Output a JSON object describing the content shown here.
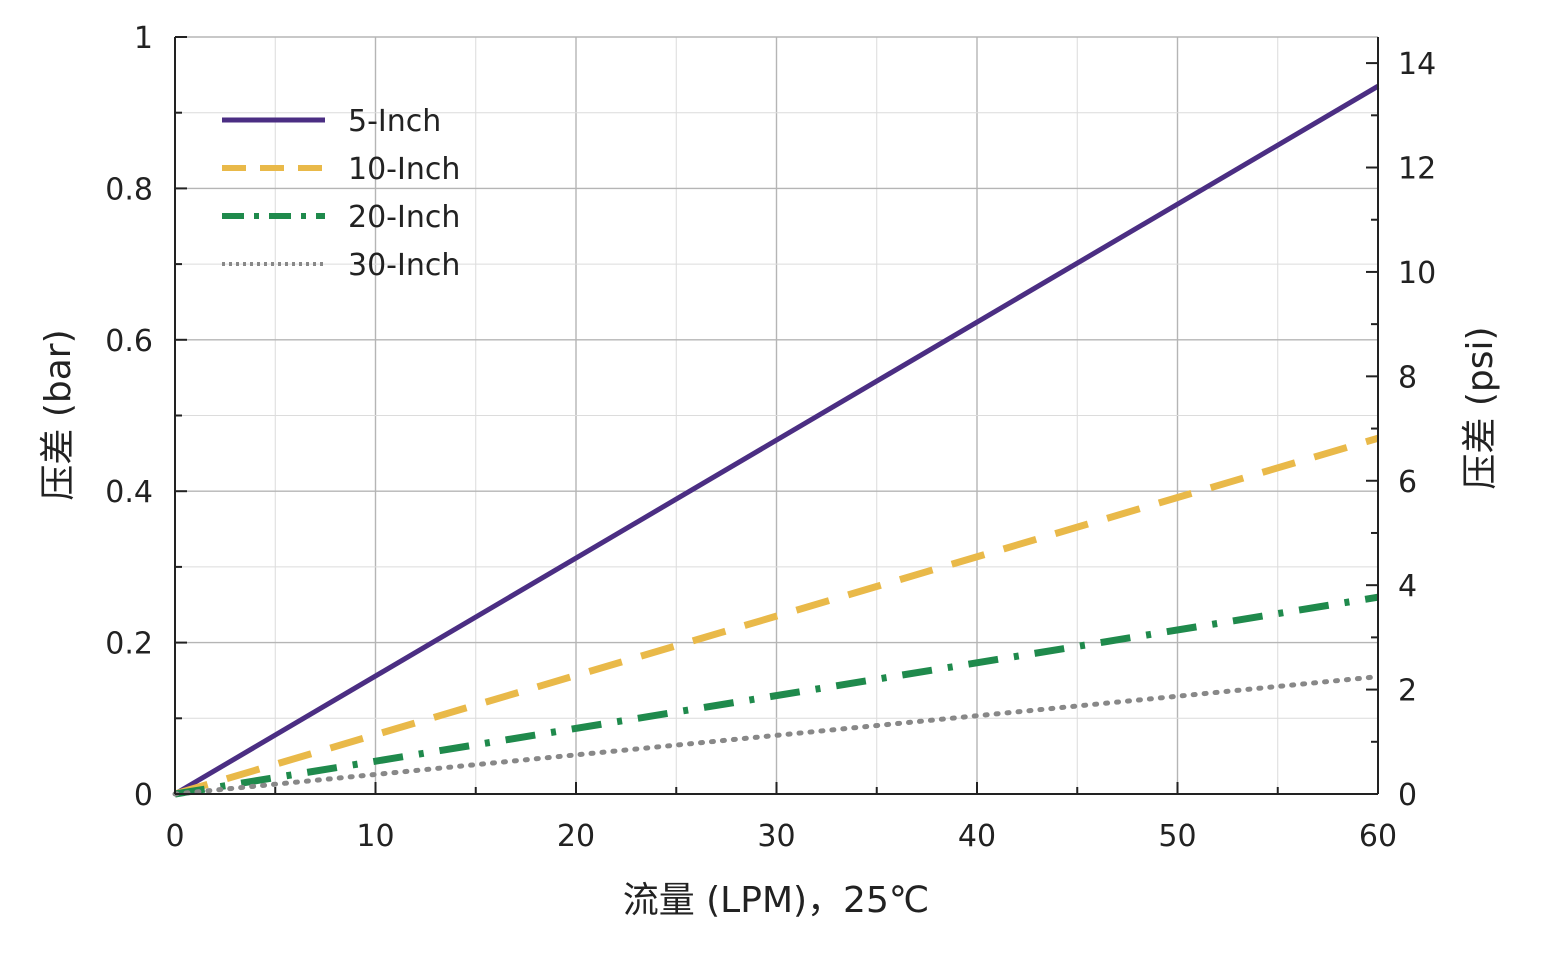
{
  "chart_data": {
    "type": "line",
    "xlabel": "流量 (LPM)，25℃",
    "ylabel": "压差 (bar)",
    "y2label": "压差 (psi)",
    "xlim": [
      0,
      60
    ],
    "ylim": [
      0,
      1
    ],
    "y2lim": [
      0,
      14.5
    ],
    "x_ticks": [
      0,
      10,
      20,
      30,
      40,
      50,
      60
    ],
    "x_tick_labels": [
      "0",
      "10",
      "20",
      "30",
      "40",
      "50",
      "60"
    ],
    "y_ticks": [
      0,
      0.2,
      0.4,
      0.6,
      0.8,
      1
    ],
    "y_tick_labels": [
      "0",
      "0.2",
      "0.4",
      "0.6",
      "0.8",
      "1"
    ],
    "y2_ticks": [
      0,
      2,
      4,
      6,
      8,
      10,
      12,
      14
    ],
    "y2_tick_labels": [
      "0",
      "2",
      "4",
      "6",
      "8",
      "10",
      "12",
      "14"
    ],
    "grid": true,
    "legend_position": "top-left",
    "series": [
      {
        "name": "5-Inch",
        "x": [
          0,
          60
        ],
        "y": [
          0,
          0.935
        ],
        "color": "#4b2e83",
        "style": "solid"
      },
      {
        "name": "10-Inch",
        "x": [
          0,
          60
        ],
        "y": [
          0,
          0.47
        ],
        "color": "#e9b949",
        "style": "dashed"
      },
      {
        "name": "20-Inch",
        "x": [
          0,
          60
        ],
        "y": [
          0,
          0.26
        ],
        "color": "#1f8a4c",
        "style": "dash-dot"
      },
      {
        "name": "30-Inch",
        "x": [
          0,
          60
        ],
        "y": [
          0,
          0.155
        ],
        "color": "#888888",
        "style": "dotted"
      }
    ]
  }
}
